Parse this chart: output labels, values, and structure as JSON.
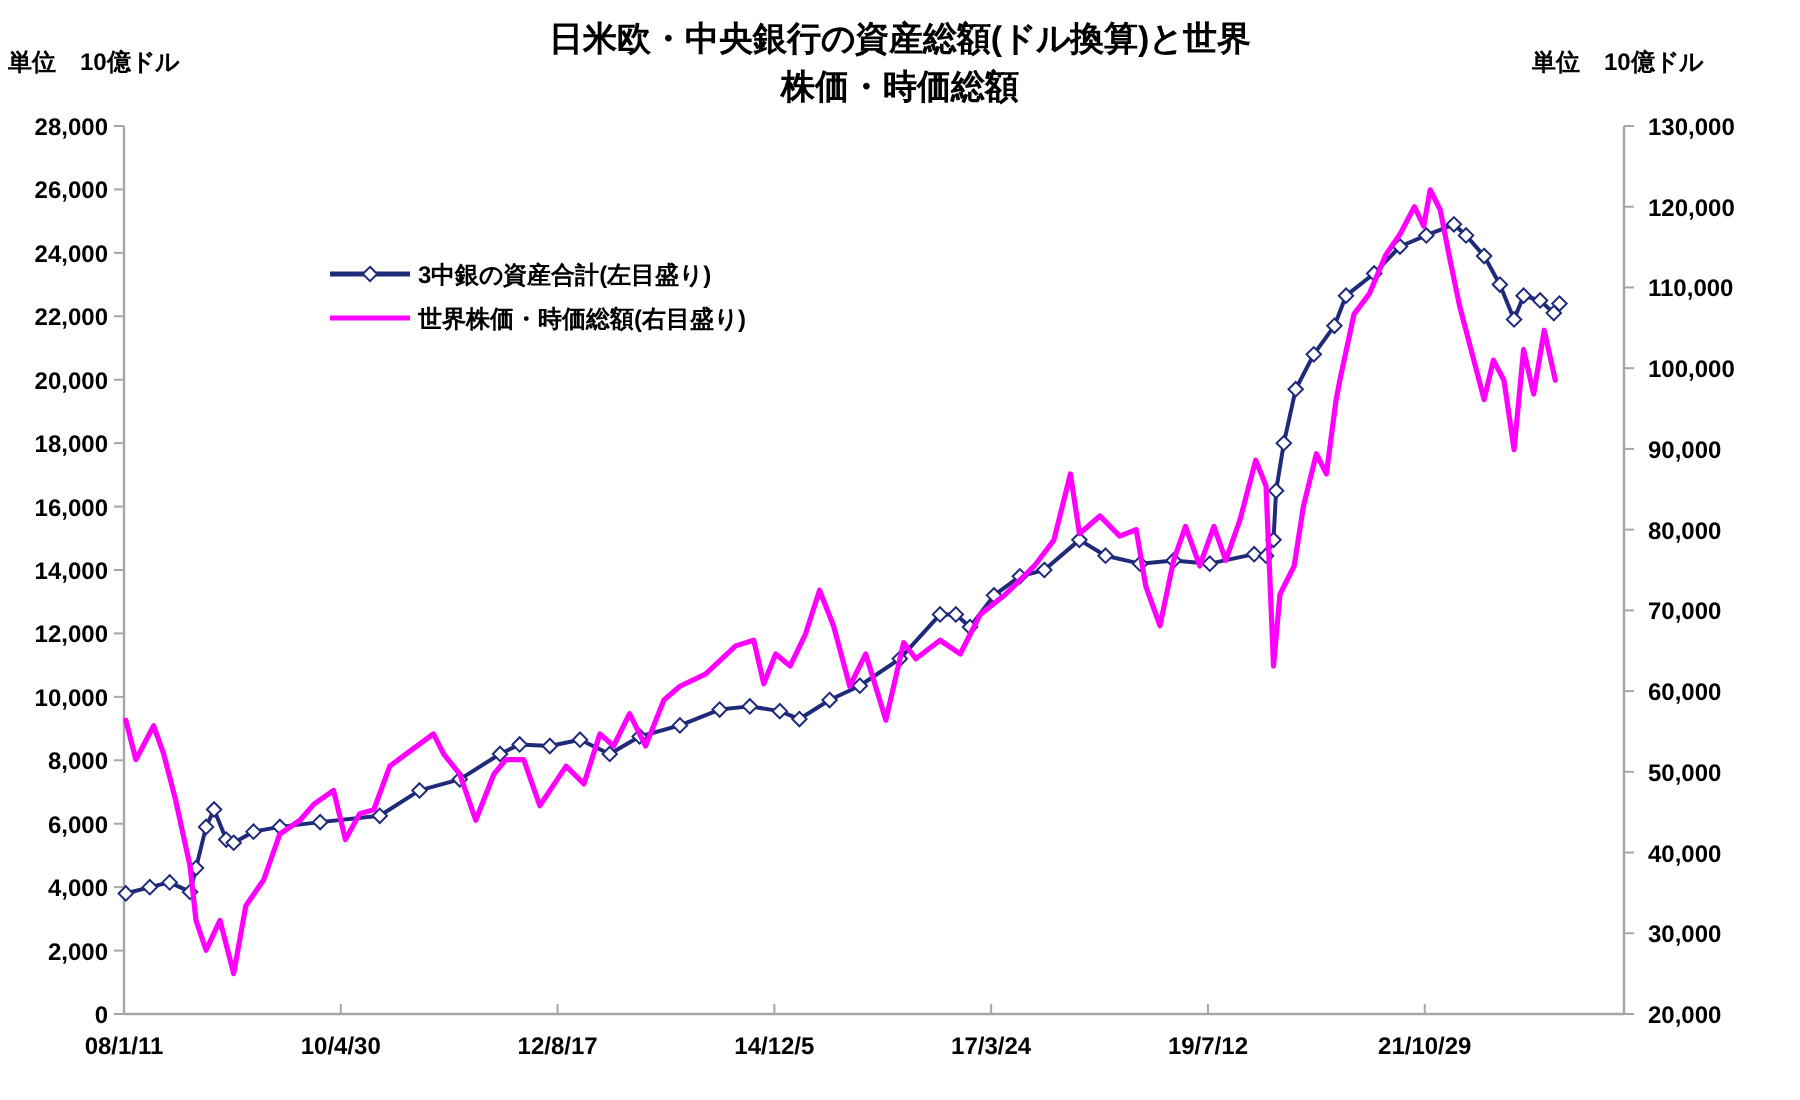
{
  "chart_data": {
    "type": "line",
    "title": "日米欧・中央銀行の資産総額(ドル換算)と世界株価・時価総額",
    "ylabel": "単位　10億ドル",
    "y2label": "単位　10億ドル",
    "xlim": [
      "2008-01-11",
      "2023-12-10"
    ],
    "xticks": [
      {
        "value": "2008-01-11",
        "label": "08/1/11"
      },
      {
        "value": "2010-04-30",
        "label": "10/4/30"
      },
      {
        "value": "2012-08-17",
        "label": "12/8/17"
      },
      {
        "value": "2014-12-05",
        "label": "14/12/5"
      },
      {
        "value": "2017-03-24",
        "label": "17/3/24"
      },
      {
        "value": "2019-07-12",
        "label": "19/7/12"
      },
      {
        "value": "2021-10-29",
        "label": "21/10/29"
      }
    ],
    "ylim": [
      0,
      28000
    ],
    "yticks": [
      0,
      {
        "value": 2000,
        "label": "2,000"
      },
      {
        "value": 4000,
        "label": "4,000"
      },
      {
        "value": 6000,
        "label": "6,000"
      },
      {
        "value": 8000,
        "label": "8,000"
      },
      {
        "value": 10000,
        "label": "10,000"
      },
      {
        "value": 12000,
        "label": "12,000"
      },
      {
        "value": 14000,
        "label": "14,000"
      },
      {
        "value": 16000,
        "label": "16,000"
      },
      {
        "value": 18000,
        "label": "18,000"
      },
      {
        "value": 20000,
        "label": "20,000"
      },
      {
        "value": 22000,
        "label": "22,000"
      },
      {
        "value": 24000,
        "label": "24,000"
      },
      {
        "value": 26000,
        "label": "26,000"
      },
      {
        "value": 28000,
        "label": "28,000"
      }
    ],
    "y2lim": [
      20000,
      130000
    ],
    "y2ticks": [
      {
        "value": 20000,
        "label": "20,000"
      },
      {
        "value": 30000,
        "label": "30,000"
      },
      {
        "value": 40000,
        "label": "40,000"
      },
      {
        "value": 50000,
        "label": "50,000"
      },
      {
        "value": 60000,
        "label": "60,000"
      },
      {
        "value": 70000,
        "label": "70,000"
      },
      {
        "value": 80000,
        "label": "80,000"
      },
      {
        "value": 90000,
        "label": "90,000"
      },
      {
        "value": 100000,
        "label": "100,000"
      },
      {
        "value": 110000,
        "label": "110,000"
      },
      {
        "value": 120000,
        "label": "120,000"
      },
      {
        "value": 130000,
        "label": "130,000"
      }
    ],
    "grid": false,
    "legend": "top left",
    "series": [
      {
        "name": "3中銀の資産合計(左目盛り)",
        "color": "#1f2a7a",
        "marker": "diamond",
        "axis": "y",
        "x": [
          "2008-01-18",
          "2008-04-20",
          "2008-07-06",
          "2008-09-23",
          "2008-10-16",
          "2008-11-24",
          "2008-12-25",
          "2009-02-10",
          "2009-03-11",
          "2009-05-27",
          "2009-09-06",
          "2010-02-09",
          "2010-09-28",
          "2011-03-01",
          "2011-08-04",
          "2012-01-07",
          "2012-03-23",
          "2012-07-18",
          "2012-11-12",
          "2013-03-07",
          "2013-07-01",
          "2013-12-04",
          "2014-05-07",
          "2014-09-01",
          "2014-12-26",
          "2015-03-12",
          "2015-07-07",
          "2015-11-01",
          "2016-04-04",
          "2016-09-07",
          "2016-11-07",
          "2017-01-01",
          "2017-04-04",
          "2017-07-13",
          "2017-10-16",
          "2018-03-01",
          "2018-06-10",
          "2018-10-22",
          "2019-03-01",
          "2019-07-19",
          "2020-01-07",
          "2020-02-22",
          "2020-03-22",
          "2020-04-01",
          "2020-05-01",
          "2020-06-16",
          "2020-08-25",
          "2020-11-13",
          "2020-12-28",
          "2021-04-16",
          "2021-07-25",
          "2021-11-04",
          "2022-02-19",
          "2022-04-07",
          "2022-06-16",
          "2022-08-16",
          "2022-10-10",
          "2022-11-16",
          "2023-01-19",
          "2023-03-13",
          "2023-04-04"
        ],
        "values": [
          3800,
          4000,
          4150,
          3850,
          4600,
          5900,
          6450,
          5500,
          5400,
          5750,
          5900,
          6050,
          6250,
          7050,
          7400,
          8200,
          8500,
          8450,
          8650,
          8200,
          8750,
          9100,
          9600,
          9700,
          9550,
          9300,
          9900,
          10350,
          11200,
          12600,
          12600,
          12200,
          13200,
          13800,
          14000,
          14950,
          14450,
          14200,
          14300,
          14200,
          14500,
          14450,
          14950,
          16500,
          18000,
          19700,
          20800,
          21700,
          22650,
          23350,
          24200,
          24550,
          24900,
          24550,
          23900,
          23000,
          21900,
          22650,
          22500,
          22100,
          22400
        ]
      },
      {
        "name": "世界株価・時価総額(右目盛り)",
        "color": "#ff00ff",
        "marker": "none",
        "axis": "y2",
        "x": [
          "2008-01-18",
          "2008-02-26",
          "2008-05-05",
          "2008-06-13",
          "2008-07-29",
          "2008-09-23",
          "2008-10-16",
          "2008-11-24",
          "2009-01-17",
          "2009-03-11",
          "2009-04-27",
          "2009-07-05",
          "2009-09-06",
          "2009-11-23",
          "2010-01-16",
          "2010-04-02",
          "2010-05-18",
          "2010-07-12",
          "2010-09-05",
          "2010-11-06",
          "2011-01-07",
          "2011-04-24",
          "2011-06-03",
          "2011-08-04",
          "2011-10-05",
          "2011-12-14",
          "2012-01-29",
          "2012-04-08",
          "2012-06-09",
          "2012-09-19",
          "2012-11-27",
          "2013-01-28",
          "2013-03-22",
          "2013-05-23",
          "2013-07-24",
          "2013-10-03",
          "2013-12-04",
          "2014-03-13",
          "2014-07-08",
          "2014-09-16",
          "2014-10-25",
          "2014-12-10",
          "2015-02-04",
          "2015-04-05",
          "2015-05-29",
          "2015-07-22",
          "2015-09-23",
          "2015-11-24",
          "2016-02-10",
          "2016-04-19",
          "2016-06-05",
          "2016-09-07",
          "2016-11-24",
          "2017-02-10",
          "2017-05-19",
          "2017-09-07",
          "2017-11-22",
          "2018-01-25",
          "2018-03-01",
          "2018-05-19",
          "2018-08-04",
          "2018-10-07",
          "2018-11-13",
          "2019-01-07",
          "2019-03-01",
          "2019-04-16",
          "2019-06-10",
          "2019-08-04",
          "2019-09-19",
          "2019-11-13",
          "2020-01-13",
          "2020-02-22",
          "2020-03-22",
          "2020-04-16",
          "2020-06-10",
          "2020-07-16",
          "2020-09-04",
          "2020-10-13",
          "2020-11-19",
          "2020-12-04",
          "2021-01-28",
          "2021-03-28",
          "2021-06-01",
          "2021-07-25",
          "2021-09-19",
          "2021-10-25",
          "2021-11-19",
          "2021-12-28",
          "2022-02-04",
          "2022-03-13",
          "2022-05-07",
          "2022-06-16",
          "2022-07-22",
          "2022-09-01",
          "2022-10-10",
          "2022-11-16",
          "2022-12-25",
          "2023-02-04",
          "2023-03-19"
        ],
        "values": [
          56400,
          51500,
          55700,
          52200,
          46500,
          38300,
          31600,
          27900,
          31600,
          25000,
          33400,
          36600,
          42300,
          44000,
          46000,
          47700,
          41600,
          44800,
          45300,
          50700,
          52200,
          54700,
          52200,
          49700,
          44000,
          49700,
          51500,
          51500,
          45800,
          50700,
          48500,
          54700,
          53200,
          57200,
          53200,
          58900,
          60600,
          62100,
          65600,
          66300,
          60900,
          64600,
          63100,
          67100,
          72500,
          68100,
          60600,
          64600,
          56400,
          66000,
          64000,
          66300,
          64600,
          69500,
          72000,
          75500,
          78700,
          86900,
          79500,
          81700,
          79200,
          80000,
          73000,
          68100,
          76200,
          80400,
          75500,
          80400,
          76200,
          81200,
          88600,
          85400,
          63100,
          72000,
          75500,
          82900,
          89400,
          86900,
          96000,
          98500,
          106700,
          109200,
          114100,
          116600,
          120000,
          117600,
          122100,
          119600,
          113400,
          107700,
          101000,
          96100,
          101000,
          98500,
          89900,
          102300,
          96800,
          104700,
          98500
        ]
      }
    ]
  }
}
